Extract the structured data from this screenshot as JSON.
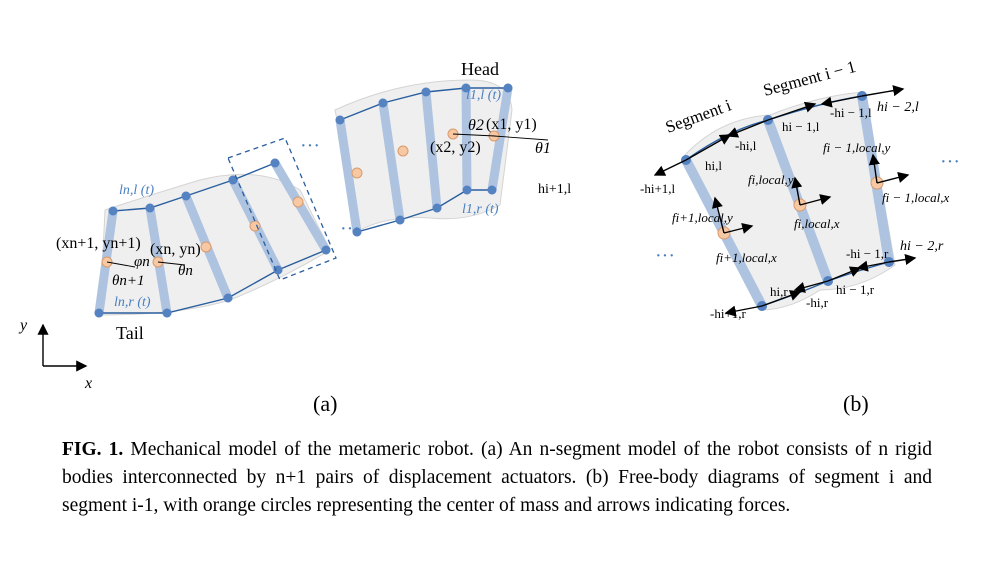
{
  "panel_a": {
    "label": "(a)",
    "head": "Head",
    "tail": "Tail",
    "axis_y": "y",
    "axis_x": "x",
    "l_1_l": "l1,l (t)",
    "l_1_r": "l1,r (t)",
    "l_n_l": "ln,l (t)",
    "l_n_r": "ln,r (t)",
    "h_i1_l": "hi+1,l",
    "x1y1": "(x1, y1)",
    "x2y2": "(x2, y2)",
    "theta2": "θ2",
    "theta1": "θ1",
    "xn1yn1": "(xn+1, yn+1)",
    "xnyn": "(xn, yn)",
    "phi_n": "φn",
    "theta_n": "θn",
    "theta_n1": "θn+1",
    "dots": "···"
  },
  "panel_b": {
    "label": "(b)",
    "segment_i": "Segment i",
    "segment_i_1": "Segment i − 1",
    "h_i_l": "hi,l",
    "neg_h_i_l": "-hi,l",
    "h_i1_1_l": "hi − 1,l",
    "neg_h_i1_1_l": "-hi − 1,l",
    "h_i2_l": "hi − 2,l",
    "neg_h_ip1_l": "-hi+1,l",
    "f_ip1_y": "fi+1,local,y",
    "f_ip1_x": "fi+1,local,x",
    "f_i_y": "fi,local,y",
    "f_i_x": "fi,local,x",
    "f_im1_y": "fi − 1,local,y",
    "f_im1_x": "fi − 1,local,x",
    "neg_h_ip1_r": "-hi+1,r",
    "h_i_r": "hi,r",
    "neg_h_i_r": "-hi,r",
    "h_im1_r": "hi − 1,r",
    "neg_h_im1_r": "-hi − 1,r",
    "h_im2_r": "hi − 2,r",
    "dots": "···"
  },
  "caption": {
    "label": "FIG. 1.",
    "text": " Mechanical model of the metameric robot. (a) An n-segment model of the robot consists of n rigid bodies interconnected by n+1 pairs of displacement actuators. (b) Free-body diagrams of segment i and segment i-1, with orange circles representing the center of mass and arrows indicating forces."
  }
}
